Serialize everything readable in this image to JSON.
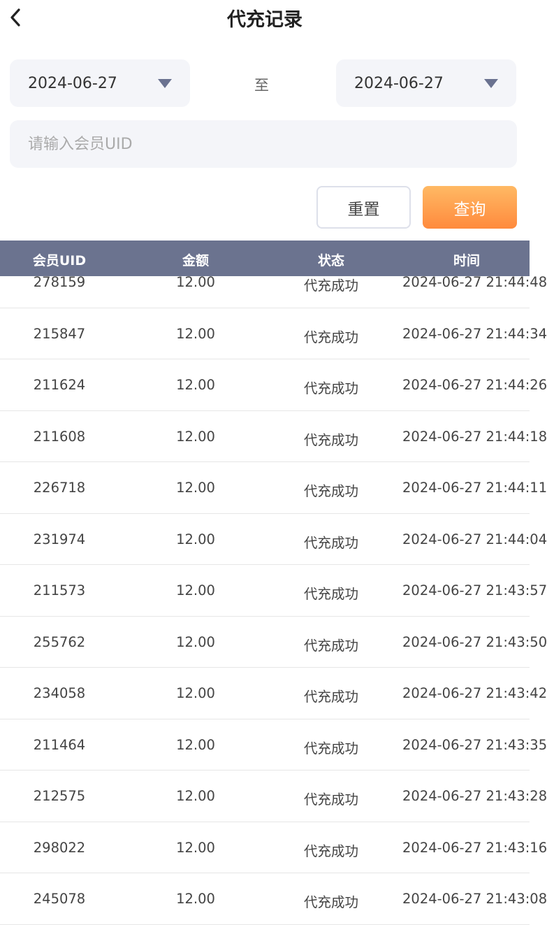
{
  "header": {
    "title": "代充记录",
    "back_icon": "chevron-left-icon"
  },
  "filters": {
    "start_date": "2024-06-27",
    "end_date": "2024-06-27",
    "separator": "至",
    "uid_placeholder": "请输入会员UID",
    "uid_value": "",
    "reset_label": "重置",
    "query_label": "查询"
  },
  "colors": {
    "table_header": "#6b738f",
    "query_button": "#ff9a4a"
  },
  "table": {
    "columns": [
      "会员UID",
      "金额",
      "状态",
      "时间"
    ],
    "rows": [
      [
        "278159",
        "12.00",
        "代充成功",
        "2024-06-27 21:44:48"
      ],
      [
        "215847",
        "12.00",
        "代充成功",
        "2024-06-27 21:44:34"
      ],
      [
        "211624",
        "12.00",
        "代充成功",
        "2024-06-27 21:44:26"
      ],
      [
        "211608",
        "12.00",
        "代充成功",
        "2024-06-27 21:44:18"
      ],
      [
        "226718",
        "12.00",
        "代充成功",
        "2024-06-27 21:44:11"
      ],
      [
        "231974",
        "12.00",
        "代充成功",
        "2024-06-27 21:44:04"
      ],
      [
        "211573",
        "12.00",
        "代充成功",
        "2024-06-27 21:43:57"
      ],
      [
        "255762",
        "12.00",
        "代充成功",
        "2024-06-27 21:43:50"
      ],
      [
        "234058",
        "12.00",
        "代充成功",
        "2024-06-27 21:43:42"
      ],
      [
        "211464",
        "12.00",
        "代充成功",
        "2024-06-27 21:43:35"
      ],
      [
        "212575",
        "12.00",
        "代充成功",
        "2024-06-27 21:43:28"
      ],
      [
        "298022",
        "12.00",
        "代充成功",
        "2024-06-27 21:43:16"
      ],
      [
        "245078",
        "12.00",
        "代充成功",
        "2024-06-27 21:43:08"
      ]
    ]
  }
}
